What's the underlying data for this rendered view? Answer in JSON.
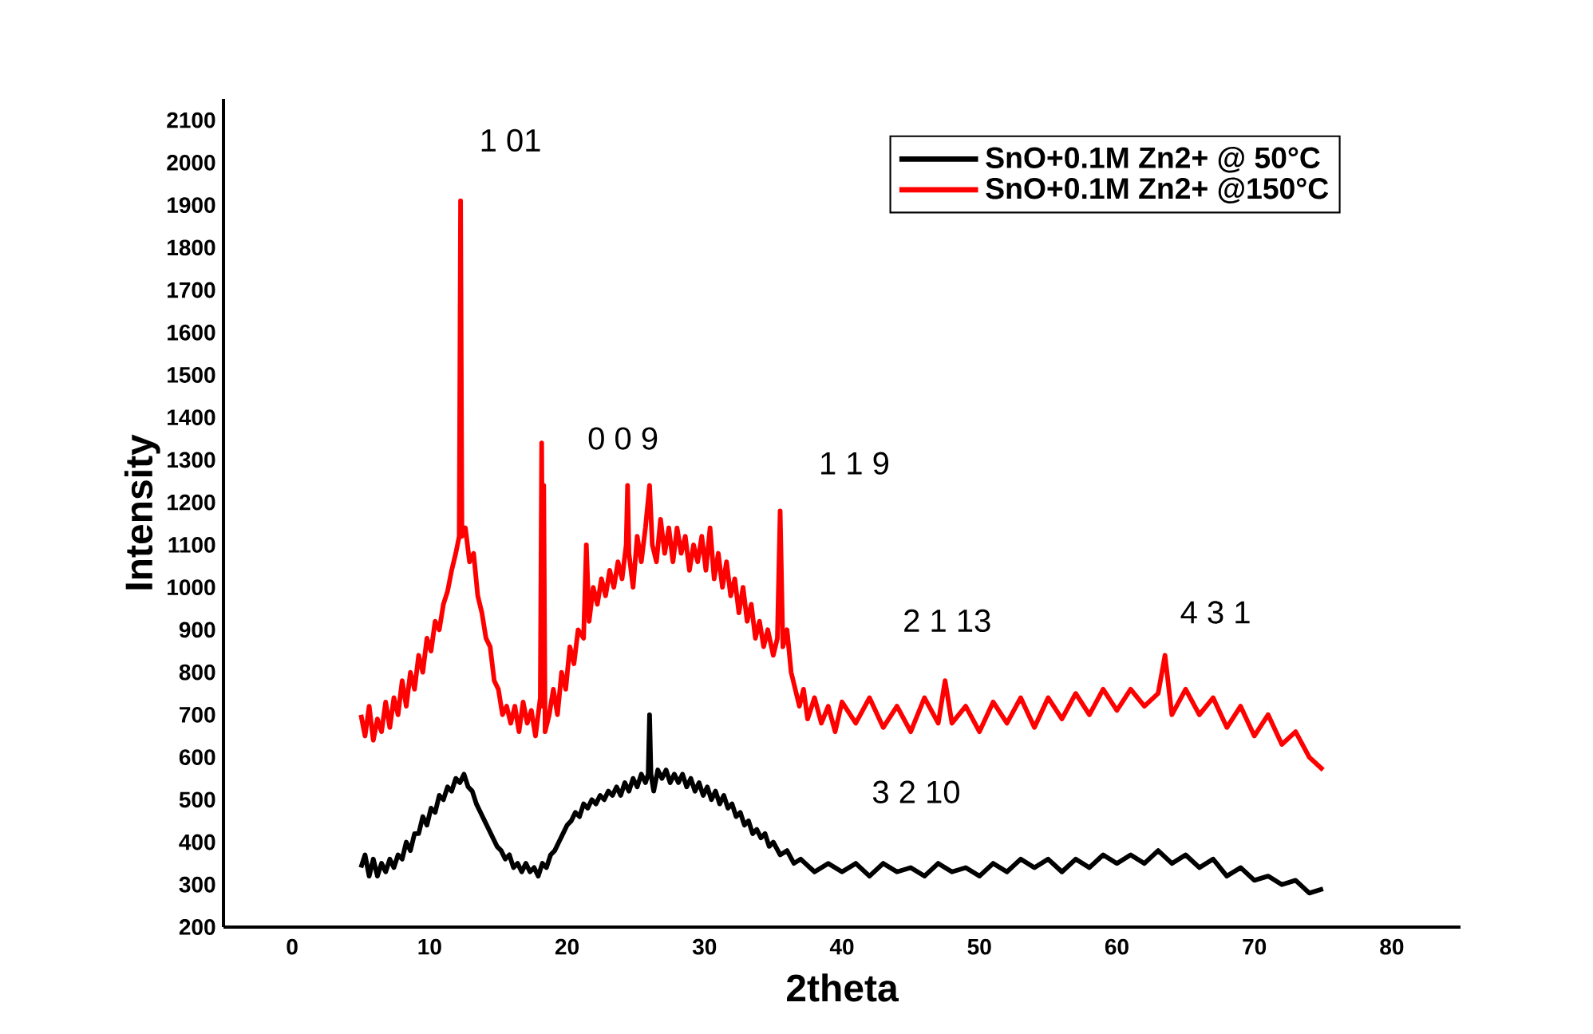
{
  "chart_data": {
    "type": "line",
    "xlabel": "2theta",
    "ylabel": "Intensity",
    "xlim": [
      -5,
      85
    ],
    "xticks": [
      0,
      10,
      20,
      30,
      40,
      50,
      60,
      70,
      80
    ],
    "ylim": [
      200,
      2150
    ],
    "yticks": [
      200,
      300,
      400,
      500,
      600,
      700,
      800,
      900,
      1000,
      1100,
      1200,
      1300,
      1400,
      1500,
      1600,
      1700,
      1800,
      1900,
      2000,
      2100
    ],
    "grid": false,
    "legend": "top right",
    "marker": "none",
    "line_style": "solid",
    "series": [
      {
        "name": "SnO+0.1M Zn2+ @ 50°C",
        "color": "#000000",
        "x": [
          5.0,
          5.3,
          5.6,
          5.9,
          6.2,
          6.5,
          6.8,
          7.1,
          7.4,
          7.7,
          8.0,
          8.3,
          8.6,
          8.9,
          9.2,
          9.5,
          9.8,
          10.1,
          10.4,
          10.7,
          11.0,
          11.3,
          11.6,
          11.9,
          12.2,
          12.5,
          12.8,
          13.1,
          13.4,
          13.7,
          14.0,
          14.3,
          14.6,
          14.9,
          15.2,
          15.5,
          15.8,
          16.1,
          16.4,
          16.7,
          17.0,
          17.3,
          17.6,
          17.9,
          18.2,
          18.5,
          18.8,
          19.1,
          19.4,
          19.7,
          20.0,
          20.3,
          20.6,
          20.9,
          21.2,
          21.5,
          21.8,
          22.1,
          22.4,
          22.7,
          23.0,
          23.3,
          23.6,
          23.9,
          24.2,
          24.5,
          24.8,
          25.1,
          25.4,
          25.7,
          25.9,
          26.0,
          26.1,
          26.3,
          26.6,
          26.9,
          27.2,
          27.5,
          27.8,
          28.1,
          28.4,
          28.7,
          29.0,
          29.3,
          29.6,
          29.9,
          30.2,
          30.5,
          30.8,
          31.1,
          31.4,
          31.7,
          32.0,
          32.3,
          32.6,
          32.9,
          33.2,
          33.5,
          33.8,
          34.1,
          34.4,
          34.7,
          35.0,
          35.5,
          36.0,
          36.5,
          37.0,
          38,
          39,
          40,
          41,
          42,
          43,
          44,
          45,
          46,
          47,
          48,
          49,
          50,
          51,
          52,
          53,
          54,
          55,
          56,
          57,
          58,
          59,
          60,
          61,
          62,
          63,
          64,
          65,
          66,
          67,
          68,
          69,
          70,
          71,
          72,
          73,
          74,
          75
        ],
        "values": [
          340,
          370,
          320,
          360,
          320,
          350,
          330,
          360,
          340,
          370,
          360,
          400,
          380,
          420,
          420,
          460,
          440,
          480,
          470,
          510,
          500,
          530,
          520,
          550,
          540,
          560,
          530,
          520,
          490,
          470,
          450,
          430,
          410,
          390,
          380,
          360,
          370,
          340,
          350,
          330,
          350,
          330,
          340,
          320,
          350,
          340,
          370,
          380,
          400,
          420,
          440,
          450,
          470,
          460,
          490,
          480,
          500,
          490,
          510,
          500,
          520,
          510,
          530,
          510,
          540,
          520,
          550,
          530,
          560,
          540,
          560,
          700,
          560,
          520,
          570,
          550,
          570,
          540,
          560,
          540,
          560,
          530,
          550,
          520,
          540,
          510,
          530,
          500,
          520,
          490,
          510,
          480,
          490,
          460,
          470,
          440,
          450,
          420,
          430,
          410,
          420,
          390,
          400,
          370,
          380,
          350,
          360,
          330,
          350,
          330,
          350,
          320,
          350,
          330,
          340,
          320,
          350,
          330,
          340,
          320,
          350,
          330,
          360,
          340,
          360,
          330,
          360,
          340,
          370,
          350,
          370,
          350,
          380,
          350,
          370,
          340,
          360,
          320,
          340,
          310,
          320,
          300,
          310,
          280,
          290
        ]
      },
      {
        "name": "SnO+0.1M Zn2+ @150°C",
        "color": "#ff0000",
        "x": [
          5.0,
          5.3,
          5.6,
          5.9,
          6.2,
          6.5,
          6.8,
          7.1,
          7.4,
          7.7,
          8.0,
          8.3,
          8.6,
          8.9,
          9.2,
          9.5,
          9.8,
          10.1,
          10.4,
          10.7,
          11.0,
          11.3,
          11.6,
          11.9,
          12.15,
          12.25,
          12.35,
          12.6,
          12.9,
          13.2,
          13.5,
          13.8,
          14.1,
          14.4,
          14.7,
          15.0,
          15.3,
          15.6,
          15.9,
          16.2,
          16.5,
          16.8,
          17.1,
          17.4,
          17.7,
          18.05,
          18.15,
          18.25,
          18.3,
          18.4,
          18.7,
          19.0,
          19.3,
          19.6,
          19.9,
          20.2,
          20.5,
          20.8,
          21.2,
          21.4,
          21.6,
          21.9,
          22.2,
          22.5,
          22.8,
          23.1,
          23.4,
          23.7,
          24.0,
          24.3,
          24.4,
          24.5,
          24.8,
          25.1,
          25.4,
          25.7,
          26.0,
          26.2,
          26.5,
          26.8,
          27.1,
          27.4,
          27.7,
          28.0,
          28.3,
          28.6,
          28.9,
          29.2,
          29.5,
          29.8,
          30.1,
          30.4,
          30.7,
          31.0,
          31.3,
          31.6,
          31.9,
          32.2,
          32.5,
          32.8,
          33.1,
          33.4,
          33.7,
          34.0,
          34.3,
          34.6,
          35.0,
          35.3,
          35.5,
          35.7,
          36.0,
          36.3,
          36.6,
          36.9,
          37.2,
          37.5,
          38.0,
          38.5,
          39.0,
          39.5,
          40.0,
          41,
          42,
          43,
          44,
          45,
          46,
          47,
          47.5,
          48,
          49,
          50,
          51,
          52,
          53,
          54,
          55,
          56,
          57,
          58,
          59,
          60,
          61,
          62,
          63,
          63.5,
          64,
          65,
          66,
          67,
          68,
          69,
          70,
          71,
          72,
          73,
          74,
          75
        ],
        "values": [
          700,
          650,
          720,
          640,
          690,
          660,
          730,
          670,
          740,
          700,
          780,
          720,
          800,
          760,
          840,
          800,
          880,
          850,
          920,
          900,
          960,
          990,
          1040,
          1080,
          1120,
          1910,
          1120,
          1140,
          1060,
          1080,
          980,
          940,
          880,
          860,
          780,
          760,
          700,
          720,
          680,
          720,
          660,
          730,
          680,
          710,
          650,
          740,
          1340,
          720,
          1240,
          660,
          700,
          760,
          700,
          800,
          760,
          860,
          820,
          900,
          880,
          1100,
          920,
          1000,
          960,
          1020,
          980,
          1040,
          1000,
          1060,
          1020,
          1100,
          1240,
          1080,
          1000,
          1120,
          1060,
          1140,
          1240,
          1100,
          1060,
          1160,
          1080,
          1140,
          1060,
          1140,
          1080,
          1120,
          1040,
          1100,
          1060,
          1120,
          1040,
          1140,
          1020,
          1080,
          1000,
          1060,
          980,
          1020,
          940,
          1000,
          920,
          960,
          880,
          920,
          860,
          900,
          840,
          880,
          1180,
          860,
          900,
          800,
          760,
          720,
          760,
          690,
          740,
          680,
          720,
          660,
          730,
          680,
          740,
          670,
          720,
          660,
          740,
          680,
          780,
          680,
          720,
          660,
          730,
          680,
          740,
          670,
          740,
          690,
          750,
          700,
          760,
          710,
          760,
          720,
          750,
          840,
          700,
          760,
          700,
          740,
          670,
          720,
          650,
          700,
          630,
          660,
          600,
          570
        ]
      }
    ],
    "annotations": [
      "1 01",
      "0 0 9",
      "1 1 9",
      "2 1 13",
      "4 3 1",
      "3 2 10"
    ]
  }
}
